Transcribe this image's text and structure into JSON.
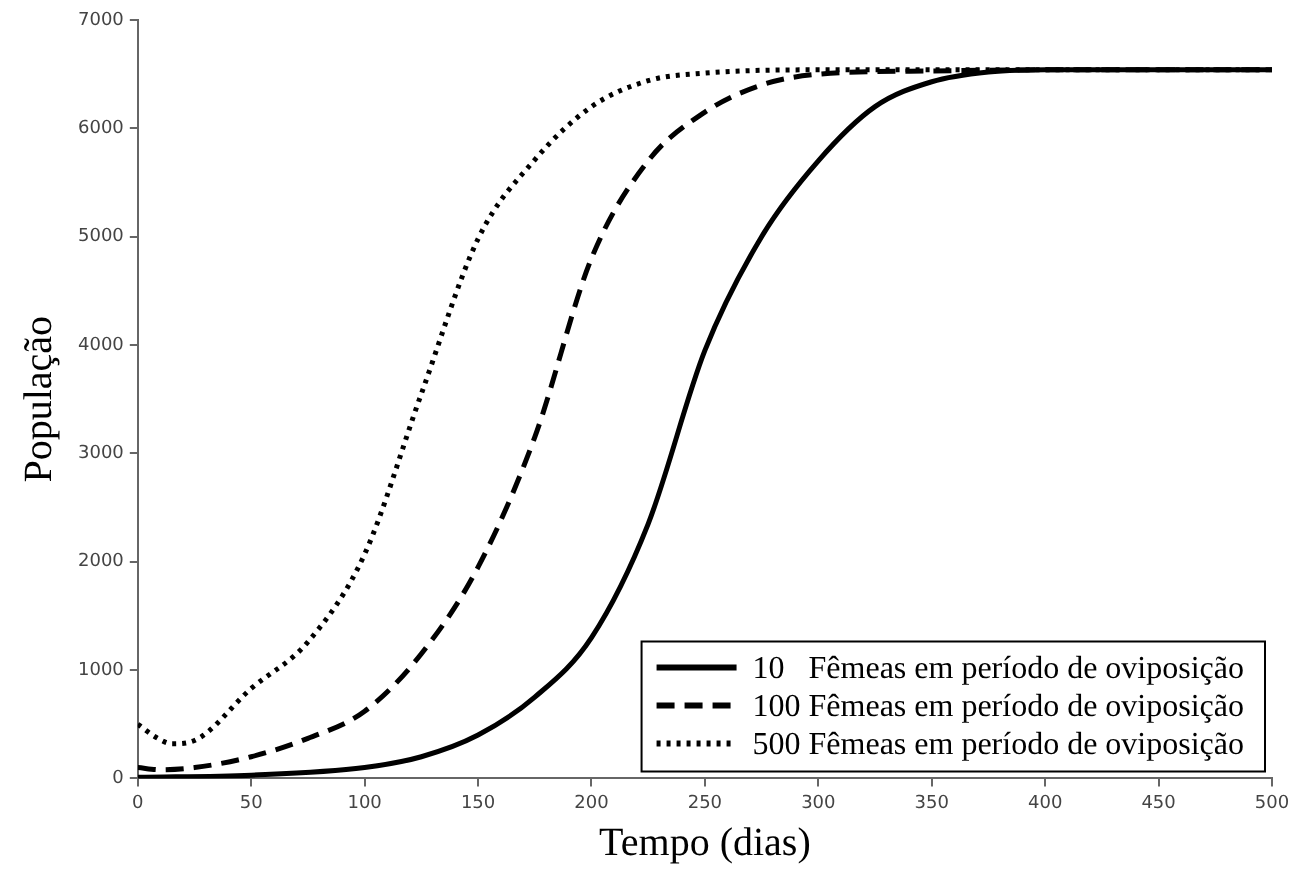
{
  "chart_data": {
    "type": "line",
    "xlabel": "Tempo (dias)",
    "ylabel": "População",
    "xlim": [
      0,
      500
    ],
    "xticks": [
      0,
      50,
      100,
      150,
      200,
      250,
      300,
      350,
      400,
      450,
      500
    ],
    "ylim": [
      0,
      7000
    ],
    "yticks": [
      0,
      1000,
      2000,
      3000,
      4000,
      5000,
      6000,
      7000
    ],
    "grid": false,
    "legend": "bottom right",
    "marker": "none",
    "series": [
      {
        "name": "10   Fêmeas em período de oviposição",
        "color": "#000000",
        "line_style": "solid",
        "x": [
          0,
          50,
          100,
          125,
          150,
          175,
          200,
          225,
          250,
          275,
          300,
          325,
          350,
          375,
          400,
          450,
          500
        ],
        "values": [
          10,
          30,
          100,
          200,
          400,
          750,
          1300,
          2350,
          3950,
          5000,
          5700,
          6200,
          6430,
          6520,
          6540,
          6540,
          6540
        ]
      },
      {
        "name": "100 Fêmeas em período de oviposição",
        "color": "#000000",
        "line_style": "dashed",
        "x": [
          0,
          10,
          25,
          50,
          75,
          100,
          125,
          150,
          175,
          200,
          225,
          250,
          275,
          300,
          350,
          400,
          450,
          500
        ],
        "values": [
          100,
          80,
          100,
          200,
          370,
          620,
          1150,
          1950,
          3150,
          4800,
          5700,
          6150,
          6400,
          6500,
          6530,
          6540,
          6540,
          6540
        ]
      },
      {
        "name": "500 Fêmeas em período de oviposição",
        "color": "#000000",
        "line_style": "dotted",
        "x": [
          0,
          8,
          15,
          25,
          50,
          75,
          100,
          125,
          150,
          175,
          200,
          225,
          250,
          300,
          350,
          400,
          450,
          500
        ],
        "values": [
          500,
          380,
          320,
          350,
          830,
          1260,
          2070,
          3550,
          4980,
          5710,
          6200,
          6440,
          6510,
          6540,
          6540,
          6540,
          6540,
          6540
        ]
      }
    ]
  }
}
